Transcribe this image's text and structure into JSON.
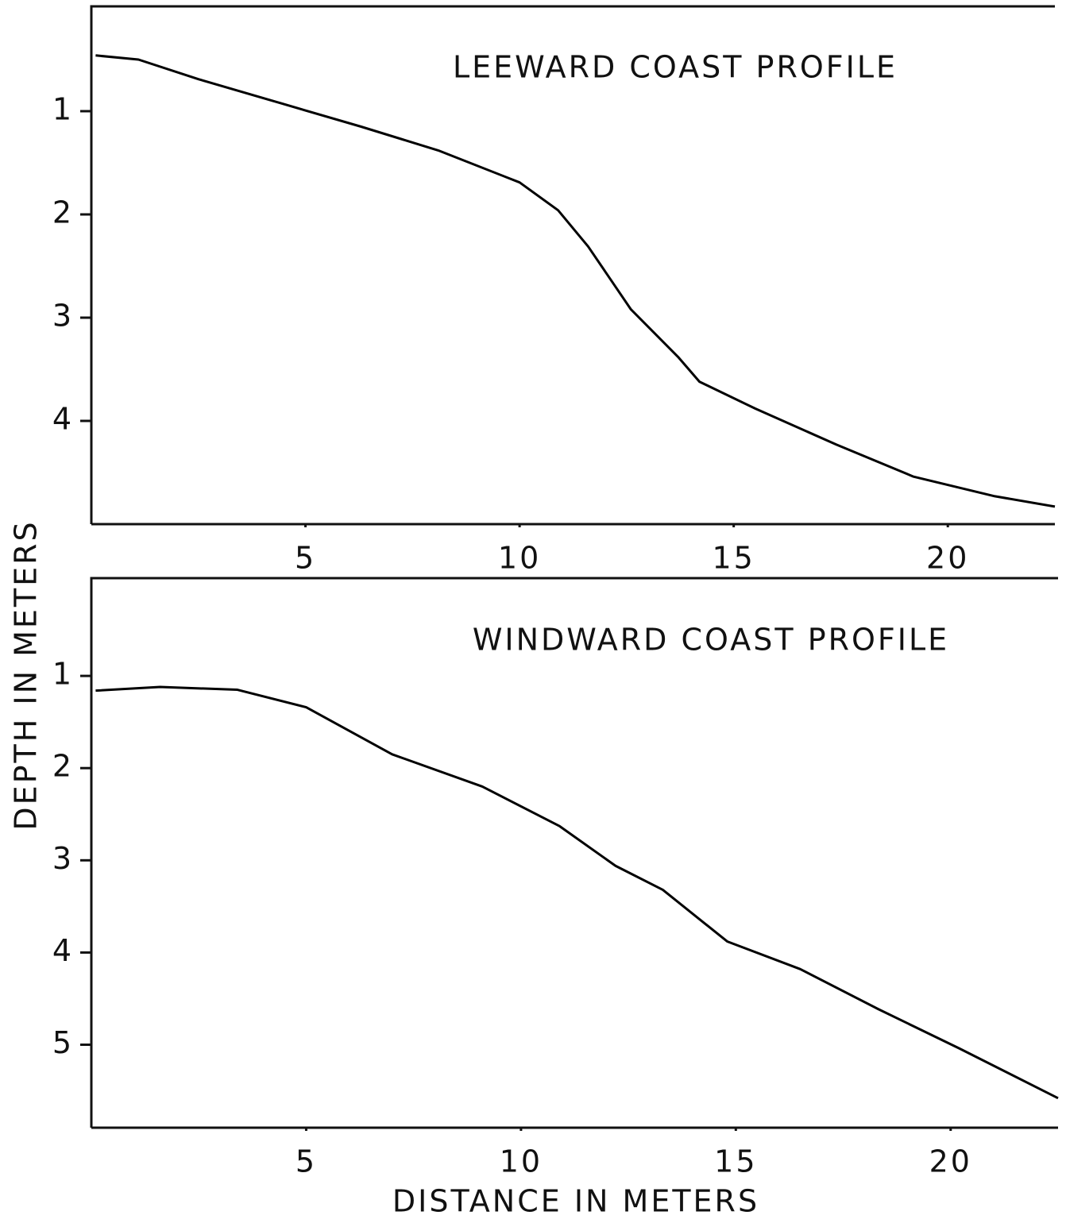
{
  "chart_data": [
    {
      "type": "line",
      "title": "LEEWARD COAST PROFILE",
      "ylabel": "DEPTH IN METERS",
      "color": "#000000",
      "x": [
        0.1,
        1.1,
        2.5,
        4.4,
        6.3,
        8.1,
        10,
        10.9,
        11.6,
        12.6,
        13.7,
        14.2,
        15.5,
        17.4,
        19.2,
        21.1,
        22.5
      ],
      "values": [
        0.46,
        0.5,
        0.69,
        0.92,
        1.15,
        1.38,
        1.69,
        1.96,
        2.31,
        2.92,
        3.38,
        3.62,
        3.88,
        4.23,
        4.54,
        4.73,
        4.83
      ],
      "xlim": [
        0,
        22.5
      ],
      "xticks": [
        5,
        10,
        15,
        20
      ],
      "ylim": [
        0,
        5
      ],
      "yticks": [
        1,
        2,
        3,
        4
      ]
    },
    {
      "type": "line",
      "title": "WINDWARD COAST PROFILE",
      "xlabel": "DISTANCE IN METERS",
      "color": "#000000",
      "x": [
        0.1,
        1.6,
        3.4,
        5,
        7,
        9.1,
        10.9,
        12.2,
        13.3,
        14.8,
        16.5,
        18.3,
        20.2,
        22.5
      ],
      "values": [
        1.16,
        1.12,
        1.15,
        1.34,
        1.85,
        2.2,
        2.63,
        3.06,
        3.32,
        3.88,
        4.18,
        4.61,
        5.04,
        5.58
      ],
      "xlim": [
        0,
        22.5
      ],
      "xticks": [
        5,
        10,
        15,
        20
      ],
      "ylim": [
        0,
        5.9
      ],
      "yticks": [
        1,
        2,
        3,
        4,
        5
      ]
    }
  ]
}
